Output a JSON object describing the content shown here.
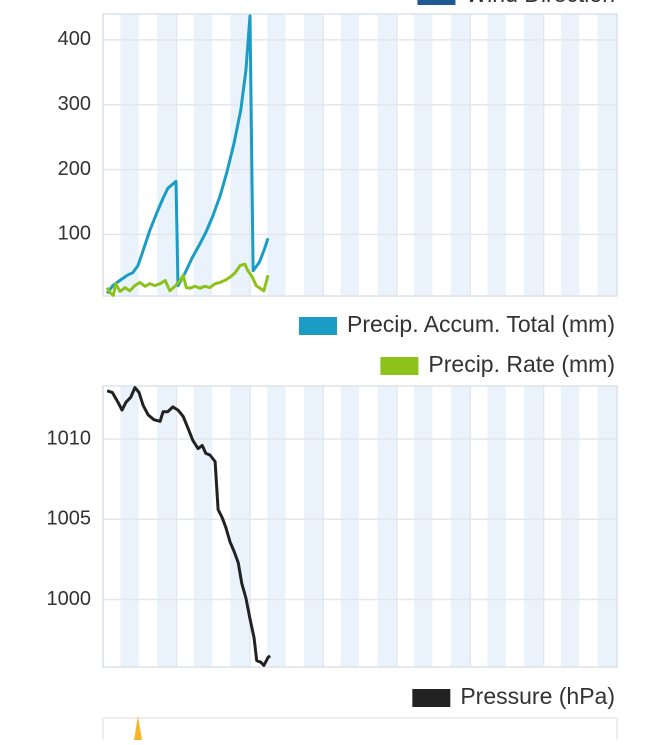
{
  "chart_data": [
    {
      "type": "line",
      "series": [
        {
          "name": "Wind Direction",
          "color": "#1f5a94",
          "x": [
            0.8
          ],
          "values": [
            null
          ]
        },
        {
          "name": "Precip. Accum. Total (mm)",
          "color": "#1a9cc4",
          "x": [
            0.8,
            1.9,
            3.3,
            4.7,
            5.8,
            6.8,
            7.8,
            9.1,
            10.5,
            11.7,
            12.6,
            14.2,
            14.6,
            16.0,
            17.3,
            18.7,
            20.0,
            21.4,
            22.8,
            24.1,
            25.5,
            26.8,
            27.8,
            28.6,
            29.2,
            30.4,
            31.3,
            32.1
          ],
          "values": [
            9,
            21,
            29,
            37,
            41,
            52,
            75,
            106,
            134,
            156,
            171,
            182,
            21,
            41,
            63,
            83,
            103,
            129,
            160,
            196,
            241,
            292,
            353,
            437,
            44,
            57,
            75,
            94
          ]
        },
        {
          "name": "Precip. Rate (mm)",
          "color": "#8cc21a",
          "x": [
            0.8,
            1.4,
            2.0,
            2.5,
            3.3,
            4.3,
            5.2,
            6.2,
            7.2,
            8.2,
            9.1,
            10.1,
            11.1,
            12.1,
            13.0,
            14.0,
            15.0,
            15.6,
            16.2,
            16.9,
            17.9,
            18.9,
            19.8,
            20.8,
            21.8,
            22.8,
            23.7,
            24.7,
            25.7,
            26.7,
            27.6,
            28.2,
            29.0,
            29.8,
            30.5,
            31.3,
            32.1
          ],
          "values": [
            18,
            10,
            6,
            24,
            12,
            18,
            13,
            21,
            26,
            20,
            24,
            21,
            24,
            29,
            13,
            20,
            29,
            37,
            18,
            17,
            20,
            17,
            20,
            18,
            24,
            26,
            29,
            34,
            41,
            52,
            54,
            44,
            35,
            21,
            17,
            13,
            37
          ]
        }
      ],
      "xlim": [
        0,
        100
      ],
      "ylim": [
        5,
        440
      ],
      "yticks": [
        100,
        200,
        300,
        400
      ],
      "grid": true
    },
    {
      "type": "line",
      "series": [
        {
          "name": "Pressure (hPa)",
          "color": "#222222",
          "x": [
            0.8,
            1.8,
            2.9,
            3.7,
            4.5,
            5.4,
            6.2,
            7.0,
            7.8,
            8.8,
            9.9,
            11.1,
            11.7,
            12.6,
            13.6,
            14.6,
            15.6,
            16.5,
            17.5,
            18.5,
            19.3,
            20.0,
            20.8,
            21.8,
            22.4,
            23.2,
            23.9,
            24.7,
            25.5,
            26.3,
            27.0,
            27.8,
            28.6,
            29.4,
            29.9,
            30.7,
            31.3,
            32.1,
            32.5
          ],
          "values": [
            1013.0,
            1012.9,
            1012.3,
            1011.8,
            1012.3,
            1012.6,
            1013.2,
            1012.9,
            1012.1,
            1011.5,
            1011.2,
            1011.1,
            1011.7,
            1011.7,
            1012.0,
            1011.8,
            1011.4,
            1010.7,
            1009.9,
            1009.4,
            1009.6,
            1009.1,
            1009.0,
            1008.6,
            1005.6,
            1005.1,
            1004.5,
            1003.6,
            1003.0,
            1002.3,
            1001.0,
            1000.1,
            998.8,
            997.6,
            996.2,
            996.1,
            995.9,
            996.4,
            996.5
          ]
        }
      ],
      "xlim": [
        0,
        100
      ],
      "ylim": [
        995.8,
        1013.3
      ],
      "yticks": [
        1000,
        1005,
        1010
      ],
      "grid": true
    }
  ]
}
